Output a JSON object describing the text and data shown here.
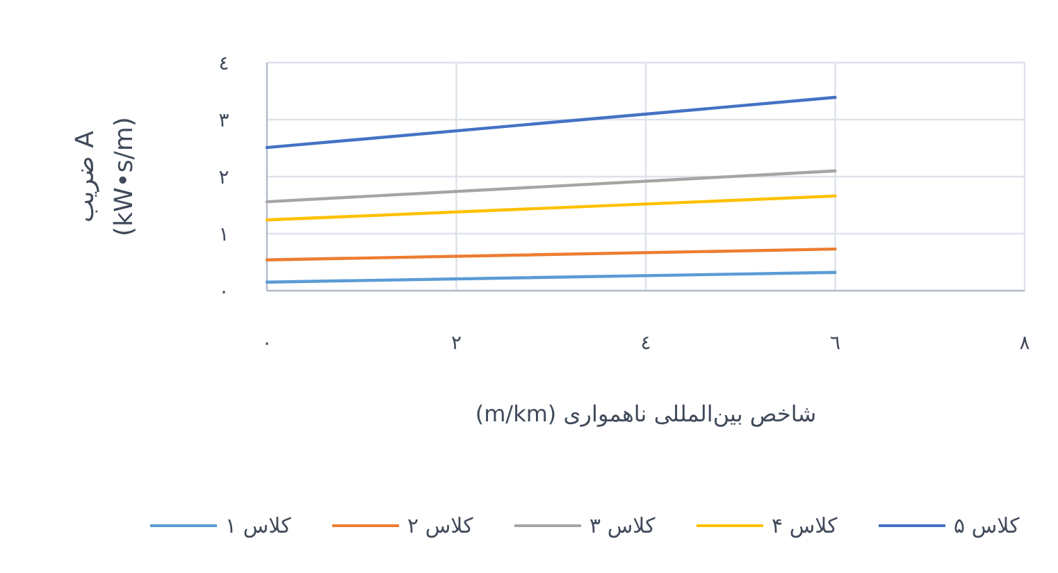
{
  "chart_data": {
    "type": "line",
    "xlabel": "شاخص بین‌المللی ناهمواری (m/km)",
    "ylabel": "ضریب A (kW•s/m)",
    "x": [
      0,
      6
    ],
    "series": [
      {
        "name": "کلاس ۱",
        "color": "#5b9bd5",
        "values": [
          0.15,
          0.32
        ]
      },
      {
        "name": "کلاس ۲",
        "color": "#ed7d31",
        "values": [
          0.54,
          0.73
        ]
      },
      {
        "name": "کلاس ۳",
        "color": "#a5a5a5",
        "values": [
          1.56,
          2.1
        ]
      },
      {
        "name": "کلاس ۴",
        "color": "#ffc000",
        "values": [
          1.24,
          1.66
        ]
      },
      {
        "name": "کلاس ۵",
        "color": "#4472c4",
        "values": [
          2.51,
          3.39
        ]
      }
    ],
    "xlim": [
      0,
      8
    ],
    "ylim": [
      0,
      4
    ],
    "xticks": [
      {
        "value": 0,
        "label": "٠"
      },
      {
        "value": 2,
        "label": "٢"
      },
      {
        "value": 4,
        "label": "٤"
      },
      {
        "value": 6,
        "label": "٦"
      },
      {
        "value": 8,
        "label": "٨"
      }
    ],
    "yticks": [
      {
        "value": 0,
        "label": "٠"
      },
      {
        "value": 1,
        "label": "١"
      },
      {
        "value": 2,
        "label": "٢"
      },
      {
        "value": 3,
        "label": "٣"
      },
      {
        "value": 4,
        "label": "٤"
      }
    ],
    "grid": true,
    "legend": "bottom",
    "marker": "none",
    "line_style": "solid"
  }
}
